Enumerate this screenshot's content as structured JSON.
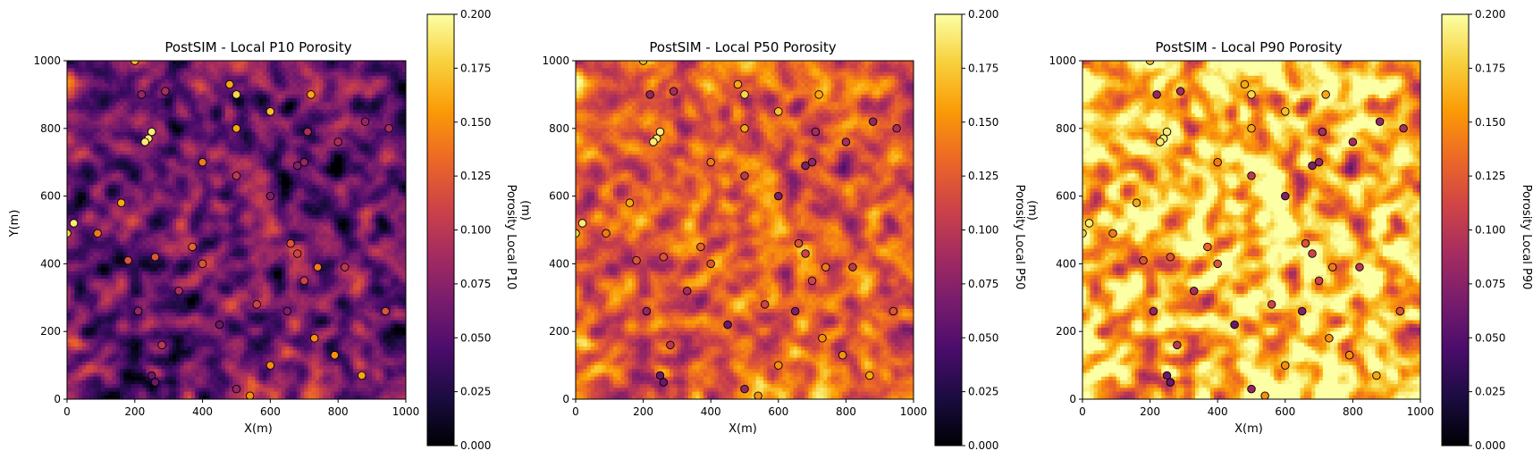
{
  "colormap": "inferno",
  "colors": {
    "stops": [
      "#000004",
      "#1b0c41",
      "#4a0c6b",
      "#781c6d",
      "#a52c60",
      "#cf4446",
      "#ed6925",
      "#fb9b06",
      "#f7d13d",
      "#fcffa4"
    ],
    "marker_edge": "#000000"
  },
  "chart_data": [
    {
      "type": "heatmap",
      "title": "PostSIM - Local P10 Porosity",
      "xlabel": "X(m)",
      "ylabel": "Y(m)",
      "colorbar_label": "Porosity Local P10",
      "colorbar_unit": "(m)",
      "xlim": [
        0,
        1000
      ],
      "ylim": [
        0,
        1000
      ],
      "clim": [
        0,
        0.2
      ],
      "grid": false,
      "background_porosity_mean": 0.06
    },
    {
      "type": "heatmap",
      "title": "PostSIM - Local P50 Porosity",
      "xlabel": "X(m)",
      "ylabel": "",
      "colorbar_label": "Porosity Local P50",
      "colorbar_unit": "(m)",
      "xlim": [
        0,
        1000
      ],
      "ylim": [
        0,
        1000
      ],
      "clim": [
        0,
        0.2
      ],
      "grid": false,
      "background_porosity_mean": 0.125
    },
    {
      "type": "heatmap",
      "title": "PostSIM - Local P90 Porosity",
      "xlabel": "X(m)",
      "ylabel": "",
      "colorbar_label": "Porosity Local P90",
      "colorbar_unit": "",
      "xlim": [
        0,
        1000
      ],
      "ylim": [
        0,
        1000
      ],
      "clim": [
        0,
        0.2
      ],
      "grid": false,
      "background_porosity_mean": 0.17
    }
  ],
  "ticks": {
    "x": [
      "0",
      "200",
      "400",
      "600",
      "800",
      "1000"
    ],
    "y": [
      "0",
      "200",
      "400",
      "600",
      "800",
      "1000"
    ],
    "colorbar": [
      "0.000",
      "0.025",
      "0.050",
      "0.075",
      "0.100",
      "0.125",
      "0.150",
      "0.175",
      "0.200"
    ]
  },
  "well_data": {
    "x": [
      200,
      220,
      290,
      480,
      500,
      720,
      600,
      250,
      240,
      230,
      500,
      400,
      710,
      800,
      880,
      950,
      500,
      680,
      700,
      600,
      20,
      0,
      160,
      90,
      370,
      260,
      180,
      400,
      660,
      680,
      740,
      820,
      700,
      330,
      210,
      560,
      450,
      650,
      730,
      280,
      790,
      940,
      250,
      600,
      260,
      870,
      260,
      500,
      540
    ],
    "y": [
      1000,
      900,
      910,
      930,
      900,
      900,
      850,
      790,
      770,
      760,
      800,
      700,
      790,
      760,
      820,
      800,
      660,
      690,
      700,
      600,
      520,
      490,
      580,
      490,
      450,
      420,
      410,
      400,
      460,
      430,
      390,
      390,
      350,
      320,
      260,
      280,
      220,
      260,
      180,
      160,
      130,
      260,
      70,
      100,
      50,
      70,
      50,
      30,
      10
    ],
    "porosity": [
      [
        0.17,
        0.08,
        0.09,
        0.16,
        0.18,
        0.16,
        0.17,
        0.19,
        0.19,
        0.19,
        0.16,
        0.14,
        0.09,
        0.09,
        0.08,
        0.09,
        0.1,
        0.07,
        0.08,
        0.07,
        0.19,
        0.18,
        0.16,
        0.14,
        0.13,
        0.12,
        0.12,
        0.12,
        0.12,
        0.11,
        0.14,
        0.1,
        0.11,
        0.09,
        0.08,
        0.11,
        0.06,
        0.07,
        0.15,
        0.1,
        0.15,
        0.12,
        0.06,
        0.15,
        0.04,
        0.16,
        0.06,
        0.08,
        0.15
      ],
      [
        0.17,
        0.08,
        0.09,
        0.16,
        0.18,
        0.16,
        0.17,
        0.19,
        0.19,
        0.19,
        0.16,
        0.14,
        0.09,
        0.09,
        0.08,
        0.09,
        0.1,
        0.07,
        0.08,
        0.07,
        0.19,
        0.18,
        0.16,
        0.14,
        0.13,
        0.12,
        0.12,
        0.12,
        0.12,
        0.11,
        0.14,
        0.1,
        0.11,
        0.09,
        0.08,
        0.11,
        0.06,
        0.07,
        0.15,
        0.1,
        0.15,
        0.12,
        0.06,
        0.15,
        0.04,
        0.16,
        0.06,
        0.08,
        0.15
      ],
      [
        0.17,
        0.08,
        0.09,
        0.16,
        0.18,
        0.16,
        0.17,
        0.19,
        0.19,
        0.19,
        0.16,
        0.14,
        0.09,
        0.09,
        0.08,
        0.09,
        0.1,
        0.07,
        0.08,
        0.07,
        0.19,
        0.18,
        0.16,
        0.14,
        0.13,
        0.12,
        0.12,
        0.12,
        0.12,
        0.11,
        0.14,
        0.1,
        0.11,
        0.09,
        0.08,
        0.11,
        0.06,
        0.07,
        0.15,
        0.1,
        0.15,
        0.12,
        0.06,
        0.15,
        0.04,
        0.16,
        0.06,
        0.08,
        0.15
      ]
    ]
  }
}
